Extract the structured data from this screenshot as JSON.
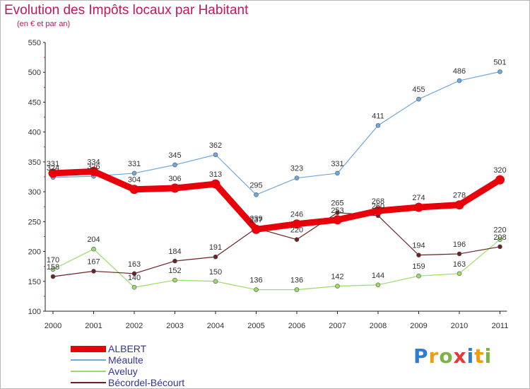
{
  "chart_data": {
    "type": "line",
    "title": "Evolution des Impôts locaux par Habitant",
    "subtitle": "(en € et par an)",
    "categories": [
      "2000",
      "2001",
      "2002",
      "2003",
      "2004",
      "2005",
      "2006",
      "2007",
      "2008",
      "2009",
      "2010",
      "2011"
    ],
    "ylim": [
      100,
      550
    ],
    "yticks": [
      "100",
      "150",
      "200",
      "250",
      "300",
      "350",
      "400",
      "450",
      "500",
      "550"
    ],
    "grid": false,
    "legend_position": "bottom-left",
    "series": [
      {
        "name": "ALBERT",
        "color": "#e8000b",
        "values": [
          331,
          334,
          304,
          306,
          313,
          237,
          246,
          253,
          268,
          274,
          278,
          320
        ],
        "labels": [
          "331",
          "334",
          "304",
          "306",
          "313",
          "237",
          "246",
          "253",
          "268",
          "274",
          "278",
          "320"
        ]
      },
      {
        "name": "Méaulte",
        "color": "#6fa8dc",
        "values": [
          324,
          326,
          331,
          345,
          362,
          295,
          323,
          331,
          411,
          455,
          486,
          501
        ],
        "labels": [
          "324",
          "326",
          "331",
          "345",
          "362",
          "295",
          "323",
          "331",
          "411",
          "455",
          "486",
          "501"
        ]
      },
      {
        "name": "Aveluy",
        "color": "#99dd66",
        "values": [
          170,
          204,
          140,
          152,
          150,
          136,
          136,
          142,
          144,
          159,
          163,
          220
        ],
        "labels": [
          "170",
          "204",
          "140",
          "152",
          "150",
          "136",
          "136",
          "142",
          "144",
          "159",
          "163",
          "220"
        ]
      },
      {
        "name": "Bécordel-Bécourt",
        "color": "#6b2226",
        "values": [
          158,
          167,
          163,
          184,
          191,
          239,
          220,
          265,
          260,
          194,
          196,
          208
        ],
        "labels": [
          "158",
          "167",
          "163",
          "184",
          "191",
          "239",
          "220",
          "265",
          "260",
          "194",
          "196",
          "208"
        ]
      }
    ]
  },
  "logo": {
    "letters": [
      "P",
      "r",
      "o",
      "x",
      "i",
      "t",
      "i"
    ],
    "colors": [
      "#2e7dd1",
      "#f39c12",
      "#7cb342",
      "#e53935",
      "#2e7dd1",
      "#f39c12",
      "#7cb342"
    ]
  }
}
